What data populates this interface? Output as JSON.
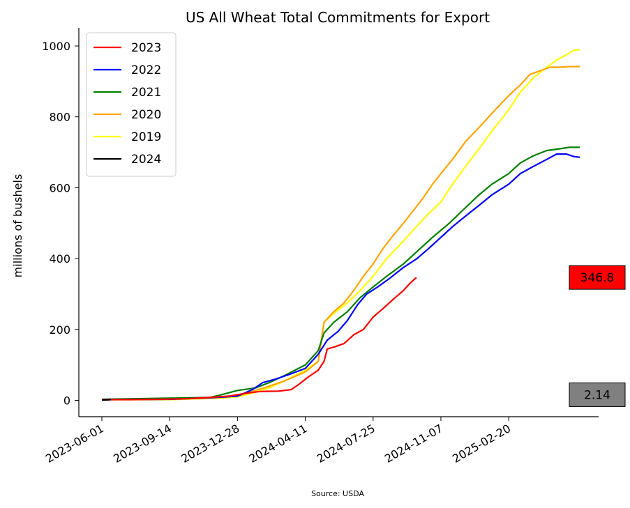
{
  "chart_data": {
    "type": "line",
    "title": "US All Wheat Total Commitments for Export",
    "ylabel": "millions of bushels",
    "xlabel": "",
    "source": "Source: USDA",
    "ylim": [
      -50,
      1030
    ],
    "xlim": [
      "2023-04-18",
      "2025-06-22"
    ],
    "yticks": [
      0,
      200,
      400,
      600,
      800,
      1000
    ],
    "xticks": [
      "2023-06-01",
      "2023-09-14",
      "2023-12-28",
      "2024-04-11",
      "2024-07-25",
      "2024-11-07",
      "2025-02-20"
    ],
    "legend_position": "upper-left",
    "grid": false,
    "series": [
      {
        "name": "2023",
        "color": "#ff0000",
        "points": [
          [
            "2023-06-01",
            2
          ],
          [
            "2023-07-15",
            2
          ],
          [
            "2023-09-01",
            3
          ],
          [
            "2023-10-15",
            5
          ],
          [
            "2023-11-15",
            8
          ],
          [
            "2023-12-15",
            12
          ],
          [
            "2024-01-10",
            20
          ],
          [
            "2024-02-01",
            25
          ],
          [
            "2024-02-29",
            26
          ],
          [
            "2024-03-20",
            30
          ],
          [
            "2024-04-01",
            45
          ],
          [
            "2024-04-15",
            65
          ],
          [
            "2024-05-01",
            85
          ],
          [
            "2024-05-10",
            110
          ],
          [
            "2024-05-15",
            145
          ],
          [
            "2024-05-25",
            150
          ],
          [
            "2024-06-10",
            160
          ],
          [
            "2024-06-25",
            185
          ],
          [
            "2024-07-10",
            200
          ],
          [
            "2024-07-25",
            235
          ],
          [
            "2024-08-10",
            260
          ],
          [
            "2024-08-25",
            285
          ],
          [
            "2024-09-10",
            310
          ],
          [
            "2024-09-20",
            330
          ],
          [
            "2024-09-30",
            346.8
          ]
        ]
      },
      {
        "name": "2022",
        "color": "#0000ff",
        "points": [
          [
            "2023-06-01",
            2
          ],
          [
            "2023-09-14",
            3
          ],
          [
            "2023-11-15",
            7
          ],
          [
            "2023-12-28",
            12
          ],
          [
            "2024-01-20",
            30
          ],
          [
            "2024-02-05",
            50
          ],
          [
            "2024-02-25",
            60
          ],
          [
            "2024-03-20",
            75
          ],
          [
            "2024-04-11",
            90
          ],
          [
            "2024-05-01",
            130
          ],
          [
            "2024-05-15",
            170
          ],
          [
            "2024-06-01",
            195
          ],
          [
            "2024-06-15",
            225
          ],
          [
            "2024-07-01",
            270
          ],
          [
            "2024-07-15",
            300
          ],
          [
            "2024-08-01",
            320
          ],
          [
            "2024-08-20",
            345
          ],
          [
            "2024-09-10",
            375
          ],
          [
            "2024-10-01",
            400
          ],
          [
            "2024-10-20",
            430
          ],
          [
            "2024-11-07",
            460
          ],
          [
            "2024-11-25",
            490
          ],
          [
            "2024-12-15",
            520
          ],
          [
            "2025-01-05",
            550
          ],
          [
            "2025-01-25",
            580
          ],
          [
            "2025-02-20",
            610
          ],
          [
            "2025-03-10",
            640
          ],
          [
            "2025-03-30",
            660
          ],
          [
            "2025-04-20",
            680
          ],
          [
            "2025-05-05",
            695
          ],
          [
            "2025-05-20",
            695
          ],
          [
            "2025-06-01",
            688
          ],
          [
            "2025-06-10",
            686
          ]
        ]
      },
      {
        "name": "2021",
        "color": "#008000",
        "points": [
          [
            "2023-06-01",
            3
          ],
          [
            "2023-09-14",
            6
          ],
          [
            "2023-11-15",
            8
          ],
          [
            "2023-12-01",
            15
          ],
          [
            "2023-12-28",
            28
          ],
          [
            "2024-01-25",
            35
          ],
          [
            "2024-02-15",
            50
          ],
          [
            "2024-03-10",
            70
          ],
          [
            "2024-04-11",
            100
          ],
          [
            "2024-05-01",
            140
          ],
          [
            "2024-05-10",
            190
          ],
          [
            "2024-05-25",
            220
          ],
          [
            "2024-06-15",
            250
          ],
          [
            "2024-07-05",
            290
          ],
          [
            "2024-07-25",
            320
          ],
          [
            "2024-08-15",
            350
          ],
          [
            "2024-09-10",
            385
          ],
          [
            "2024-10-01",
            420
          ],
          [
            "2024-10-25",
            460
          ],
          [
            "2024-11-20",
            500
          ],
          [
            "2024-12-10",
            535
          ],
          [
            "2025-01-05",
            580
          ],
          [
            "2025-01-25",
            610
          ],
          [
            "2025-02-20",
            640
          ],
          [
            "2025-03-10",
            670
          ],
          [
            "2025-03-30",
            690
          ],
          [
            "2025-04-20",
            705
          ],
          [
            "2025-05-10",
            710
          ],
          [
            "2025-05-25",
            714
          ],
          [
            "2025-06-10",
            714
          ]
        ]
      },
      {
        "name": "2020",
        "color": "#ffa500",
        "points": [
          [
            "2023-06-01",
            2
          ],
          [
            "2023-09-14",
            4
          ],
          [
            "2023-12-01",
            8
          ],
          [
            "2023-12-28",
            12
          ],
          [
            "2024-01-20",
            25
          ],
          [
            "2024-02-15",
            40
          ],
          [
            "2024-03-10",
            55
          ],
          [
            "2024-04-11",
            80
          ],
          [
            "2024-05-01",
            110
          ],
          [
            "2024-05-10",
            220
          ],
          [
            "2024-05-25",
            250
          ],
          [
            "2024-06-10",
            275
          ],
          [
            "2024-06-25",
            310
          ],
          [
            "2024-07-10",
            350
          ],
          [
            "2024-07-25",
            385
          ],
          [
            "2024-08-10",
            430
          ],
          [
            "2024-08-25",
            465
          ],
          [
            "2024-09-10",
            500
          ],
          [
            "2024-09-25",
            535
          ],
          [
            "2024-10-10",
            570
          ],
          [
            "2024-10-25",
            610
          ],
          [
            "2024-11-07",
            640
          ],
          [
            "2024-11-25",
            680
          ],
          [
            "2024-12-15",
            730
          ],
          [
            "2025-01-05",
            770
          ],
          [
            "2025-01-25",
            810
          ],
          [
            "2025-02-20",
            860
          ],
          [
            "2025-03-10",
            890
          ],
          [
            "2025-03-25",
            920
          ],
          [
            "2025-04-10",
            930
          ],
          [
            "2025-04-25",
            940
          ],
          [
            "2025-05-10",
            940
          ],
          [
            "2025-05-25",
            942
          ],
          [
            "2025-06-10",
            942
          ]
        ]
      },
      {
        "name": "2019",
        "color": "#ffff00",
        "points": [
          [
            "2023-06-01",
            2
          ],
          [
            "2023-09-14",
            2
          ],
          [
            "2023-12-01",
            6
          ],
          [
            "2023-12-28",
            10
          ],
          [
            "2024-01-20",
            20
          ],
          [
            "2024-02-15",
            35
          ],
          [
            "2024-03-10",
            55
          ],
          [
            "2024-04-11",
            85
          ],
          [
            "2024-05-01",
            110
          ],
          [
            "2024-05-10",
            220
          ],
          [
            "2024-05-25",
            245
          ],
          [
            "2024-06-15",
            275
          ],
          [
            "2024-07-05",
            310
          ],
          [
            "2024-07-25",
            350
          ],
          [
            "2024-08-15",
            400
          ],
          [
            "2024-09-05",
            440
          ],
          [
            "2024-09-25",
            480
          ],
          [
            "2024-10-15",
            520
          ],
          [
            "2024-11-07",
            560
          ],
          [
            "2024-11-25",
            610
          ],
          [
            "2024-12-15",
            660
          ],
          [
            "2025-01-05",
            710
          ],
          [
            "2025-01-25",
            760
          ],
          [
            "2025-02-20",
            820
          ],
          [
            "2025-03-10",
            870
          ],
          [
            "2025-03-30",
            910
          ],
          [
            "2025-04-20",
            940
          ],
          [
            "2025-05-05",
            960
          ],
          [
            "2025-05-20",
            975
          ],
          [
            "2025-06-01",
            988
          ],
          [
            "2025-06-10",
            990
          ]
        ]
      },
      {
        "name": "2024",
        "color": "#000000",
        "points": [
          [
            "2023-06-01",
            0.5
          ],
          [
            "2023-06-08",
            1.2
          ],
          [
            "2023-06-15",
            2.14
          ]
        ]
      }
    ],
    "annotations": [
      {
        "label": "346.8",
        "value": 346.8,
        "background": "#ff0000"
      },
      {
        "label": "2.14",
        "value": 2.14,
        "background": "#808080"
      }
    ]
  }
}
